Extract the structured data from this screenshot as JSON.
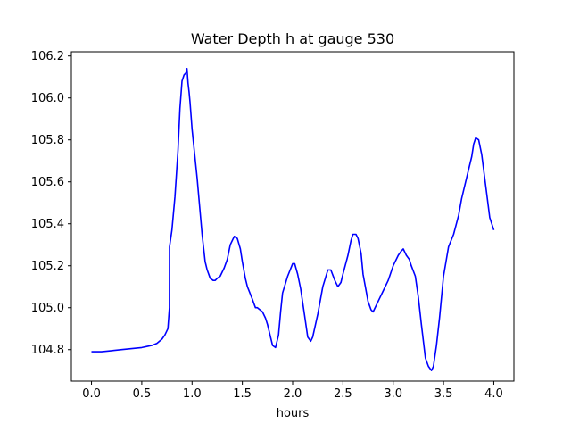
{
  "chart_data": {
    "type": "line",
    "title": "Water Depth h at gauge 530",
    "xlabel": "hours",
    "ylabel": "",
    "xlim": [
      -0.2,
      4.2
    ],
    "ylim": [
      104.65,
      106.22
    ],
    "xticks": [
      0.0,
      0.5,
      1.0,
      1.5,
      2.0,
      2.5,
      3.0,
      3.5,
      4.0
    ],
    "xtick_labels": [
      "0.0",
      "0.5",
      "1.0",
      "1.5",
      "2.0",
      "2.5",
      "3.0",
      "3.5",
      "4.0"
    ],
    "yticks": [
      104.8,
      105.0,
      105.2,
      105.4,
      105.6,
      105.8,
      106.0,
      106.2
    ],
    "ytick_labels": [
      "104.8",
      "105.0",
      "105.2",
      "105.4",
      "105.6",
      "105.8",
      "106.0",
      "106.2"
    ],
    "grid": false,
    "colors": {
      "line": "#0000ff",
      "axes": "#000000",
      "background": "#ffffff"
    },
    "series": [
      {
        "x": [
          0.0,
          0.1,
          0.2,
          0.3,
          0.4,
          0.5,
          0.55,
          0.6,
          0.65,
          0.7,
          0.73,
          0.76,
          0.775,
          0.776,
          0.8,
          0.83,
          0.86,
          0.88,
          0.9,
          0.92,
          0.94,
          0.95,
          0.96,
          0.97,
          0.98,
          1.0,
          1.05,
          1.1,
          1.13,
          1.15,
          1.18,
          1.21,
          1.23,
          1.25,
          1.28,
          1.32,
          1.35,
          1.38,
          1.42,
          1.45,
          1.48,
          1.5,
          1.53,
          1.55,
          1.6,
          1.63,
          1.65,
          1.7,
          1.73,
          1.75,
          1.8,
          1.83,
          1.86,
          1.88,
          1.9,
          1.95,
          2.0,
          2.02,
          2.05,
          2.08,
          2.12,
          2.15,
          2.18,
          2.2,
          2.25,
          2.3,
          2.35,
          2.38,
          2.42,
          2.45,
          2.48,
          2.5,
          2.55,
          2.58,
          2.6,
          2.63,
          2.65,
          2.68,
          2.7,
          2.75,
          2.78,
          2.8,
          2.85,
          2.9,
          2.95,
          3.0,
          3.05,
          3.08,
          3.1,
          3.13,
          3.16,
          3.18,
          3.22,
          3.25,
          3.28,
          3.32,
          3.35,
          3.38,
          3.4,
          3.43,
          3.46,
          3.5,
          3.55,
          3.6,
          3.65,
          3.68,
          3.72,
          3.78,
          3.8,
          3.82,
          3.85,
          3.88,
          3.92,
          3.96,
          4.0
        ],
        "y": [
          104.79,
          104.79,
          104.795,
          104.8,
          104.805,
          104.81,
          104.815,
          104.82,
          104.83,
          104.85,
          104.87,
          104.9,
          105.0,
          105.29,
          105.37,
          105.53,
          105.75,
          105.95,
          106.08,
          106.11,
          106.12,
          106.14,
          106.07,
          106.03,
          105.98,
          105.85,
          105.62,
          105.35,
          105.22,
          105.18,
          105.14,
          105.13,
          105.13,
          105.14,
          105.15,
          105.19,
          105.23,
          105.3,
          105.34,
          105.33,
          105.28,
          105.22,
          105.14,
          105.1,
          105.04,
          105.0,
          105.0,
          104.98,
          104.95,
          104.92,
          104.82,
          104.81,
          104.87,
          104.98,
          105.07,
          105.15,
          105.21,
          105.21,
          105.16,
          105.09,
          104.96,
          104.86,
          104.84,
          104.86,
          104.97,
          105.1,
          105.18,
          105.18,
          105.13,
          105.1,
          105.12,
          105.16,
          105.25,
          105.32,
          105.35,
          105.35,
          105.33,
          105.26,
          105.16,
          105.03,
          104.99,
          104.98,
          105.03,
          105.08,
          105.13,
          105.2,
          105.25,
          105.27,
          105.28,
          105.25,
          105.23,
          105.2,
          105.15,
          105.05,
          104.92,
          104.76,
          104.72,
          104.7,
          104.72,
          104.82,
          104.95,
          105.15,
          105.29,
          105.35,
          105.44,
          105.52,
          105.6,
          105.72,
          105.78,
          105.81,
          105.8,
          105.73,
          105.58,
          105.43,
          105.37
        ]
      }
    ]
  }
}
